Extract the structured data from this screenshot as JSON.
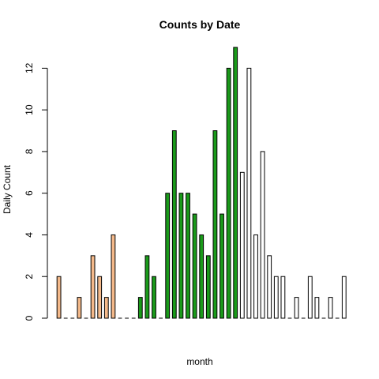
{
  "chart_data": {
    "type": "bar",
    "title": "Counts by Date",
    "xlabel": "month",
    "ylabel": "Daily Count",
    "ylim": [
      0,
      13
    ],
    "yticks": [
      0,
      2,
      4,
      6,
      8,
      10,
      12
    ],
    "grid": false,
    "legend": "none",
    "colors": {
      "tan": "#F4B98A",
      "green": "#1A9A1A",
      "white": "#FFFFFF",
      "outline": "#000000"
    },
    "values": [
      2,
      0,
      0,
      1,
      0,
      3,
      2,
      1,
      4,
      0,
      0,
      0,
      1,
      3,
      2,
      0,
      6,
      9,
      6,
      6,
      5,
      4,
      3,
      9,
      5,
      12,
      13,
      7,
      12,
      4,
      8,
      3,
      2,
      2,
      0,
      1,
      0,
      2,
      1,
      0,
      1,
      0,
      2
    ],
    "bar_colors": [
      "tan",
      "tan",
      "tan",
      "tan",
      "tan",
      "tan",
      "tan",
      "tan",
      "tan",
      "tan",
      "tan",
      "tan",
      "green",
      "green",
      "green",
      "green",
      "green",
      "green",
      "green",
      "green",
      "green",
      "green",
      "green",
      "green",
      "green",
      "green",
      "green",
      "white",
      "white",
      "white",
      "white",
      "white",
      "white",
      "white",
      "white",
      "white",
      "white",
      "white",
      "white",
      "white",
      "white",
      "white",
      "white"
    ]
  }
}
